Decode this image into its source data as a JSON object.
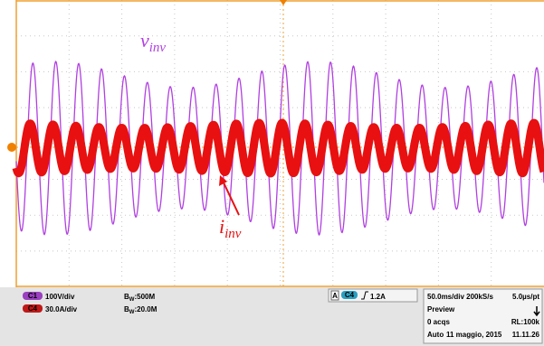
{
  "screen": {
    "v_label": "v",
    "v_sub": "inv",
    "i_label": "i",
    "i_sub": "inv"
  },
  "channels": [
    {
      "badge": "C1",
      "scale": "100V/div",
      "bw_prefix": "B",
      "bw_sub": "W",
      "bw_value": ":500M"
    },
    {
      "badge": "C4",
      "scale": "30.0A/div",
      "bw_prefix": "B",
      "bw_sub": "W",
      "bw_value": ":20.0M"
    }
  ],
  "trigger": {
    "mode": "A",
    "source": "C4",
    "level": "1.2A"
  },
  "timebase": {
    "scale": "50.0ms/div 200kS/s",
    "resolution": "5.0µs/pt",
    "status": "Preview",
    "acqs": "0 acqs",
    "record": "RL:100k",
    "mode": "Auto",
    "date": "11 maggio, 2015",
    "time": "11.11.26"
  }
}
